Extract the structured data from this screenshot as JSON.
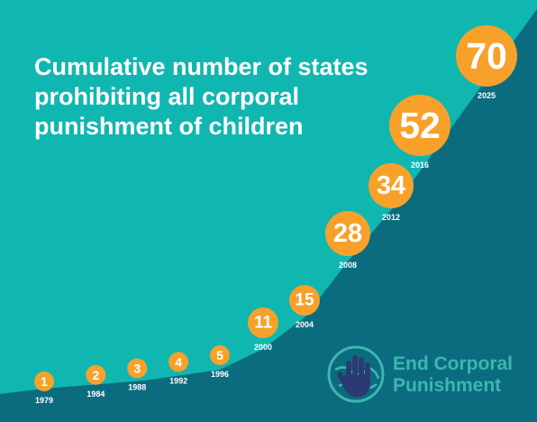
{
  "colors": {
    "background": "#10b7b0",
    "area": "#0b6c80",
    "marker": "#f7a12b",
    "marker_text": "#ffffff",
    "year_text": "#ffffff",
    "logo_text": "#3fb6b0",
    "logo_hand": "#2b3a72"
  },
  "title_lines": [
    "Cumulative number of states",
    "prohibiting all corporal",
    "punishment of children"
  ],
  "logo": {
    "line1": "End Corporal",
    "line2": "Punishment",
    "icon": "raised-hand-globe-icon"
  },
  "chart_data": {
    "type": "area",
    "title": "Cumulative number of states prohibiting all corporal punishment of children",
    "x": [
      1979,
      1984,
      1988,
      1992,
      1996,
      2000,
      2004,
      2008,
      2012,
      2016,
      2025
    ],
    "y": [
      1,
      2,
      3,
      4,
      5,
      11,
      15,
      28,
      34,
      52,
      70
    ],
    "data_labels": [
      "1",
      "2",
      "3",
      "4",
      "5",
      "11",
      "15",
      "28",
      "34",
      "52",
      "70"
    ],
    "tick_labels": [
      "1979",
      "1984",
      "1988",
      "1992",
      "1996",
      "2000",
      "2004",
      "2008",
      "2012",
      "2016",
      "2025"
    ],
    "xlabel": "",
    "ylabel": "",
    "grid": false,
    "legend": "none"
  }
}
